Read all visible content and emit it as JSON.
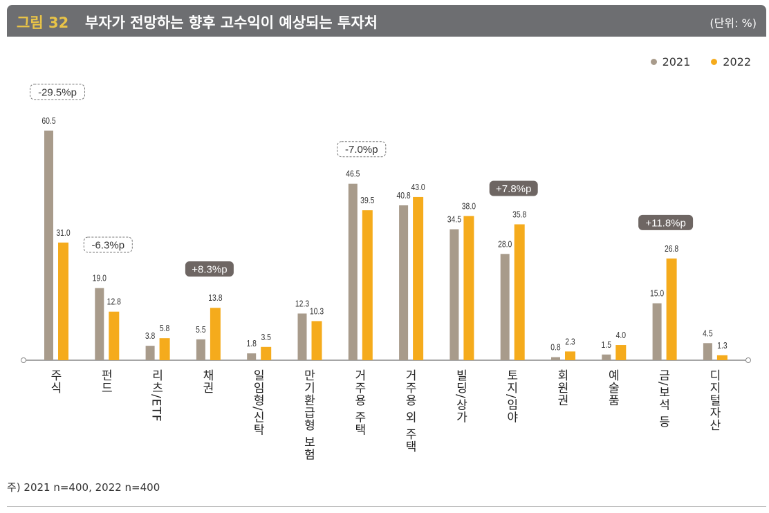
{
  "header": {
    "figure": "그림 32",
    "title": "부자가 전망하는 향후 고수익이 예상되는 투자처",
    "unit": "(단위: %)"
  },
  "note": "주) 2021 n=400, 2022 n=400",
  "colors": {
    "2021": "#a89b8b",
    "2022": "#f5ab1c",
    "header": "#6d6e71",
    "callout": "#6e6663"
  },
  "chart_data": {
    "type": "bar",
    "categories": [
      "주식",
      "펀드",
      "리츠/ETF",
      "채권",
      "일임형/신탁",
      "만기환급형 보험",
      "거주용 주택",
      "거주용 외 주택",
      "빌딩/상가",
      "토지/임야",
      "회원권",
      "예술품",
      "금/보석 등",
      "디지털자산"
    ],
    "series": [
      {
        "name": "2021",
        "values": [
          60.5,
          19.0,
          3.8,
          5.5,
          1.8,
          12.3,
          46.5,
          40.8,
          34.5,
          28.0,
          0.8,
          1.5,
          15.0,
          4.5
        ]
      },
      {
        "name": "2022",
        "values": [
          31.0,
          12.8,
          5.8,
          13.8,
          3.5,
          10.3,
          39.5,
          43.0,
          38.0,
          35.8,
          2.3,
          4.0,
          26.8,
          1.3
        ]
      }
    ],
    "legend": "top-right",
    "ylim": [
      0,
      62
    ],
    "grid": false,
    "annotations": [
      {
        "category": 0,
        "text": "-29.5%p",
        "style": "dashed"
      },
      {
        "category": 1,
        "text": "-6.3%p",
        "style": "dashed"
      },
      {
        "category": 3,
        "text": "+8.3%p",
        "style": "filled"
      },
      {
        "category": 6,
        "text": "-7.0%p",
        "style": "dashed"
      },
      {
        "category": 9,
        "text": "+7.8%p",
        "style": "filled"
      },
      {
        "category": 12,
        "text": "+11.8%p",
        "style": "filled"
      }
    ]
  }
}
